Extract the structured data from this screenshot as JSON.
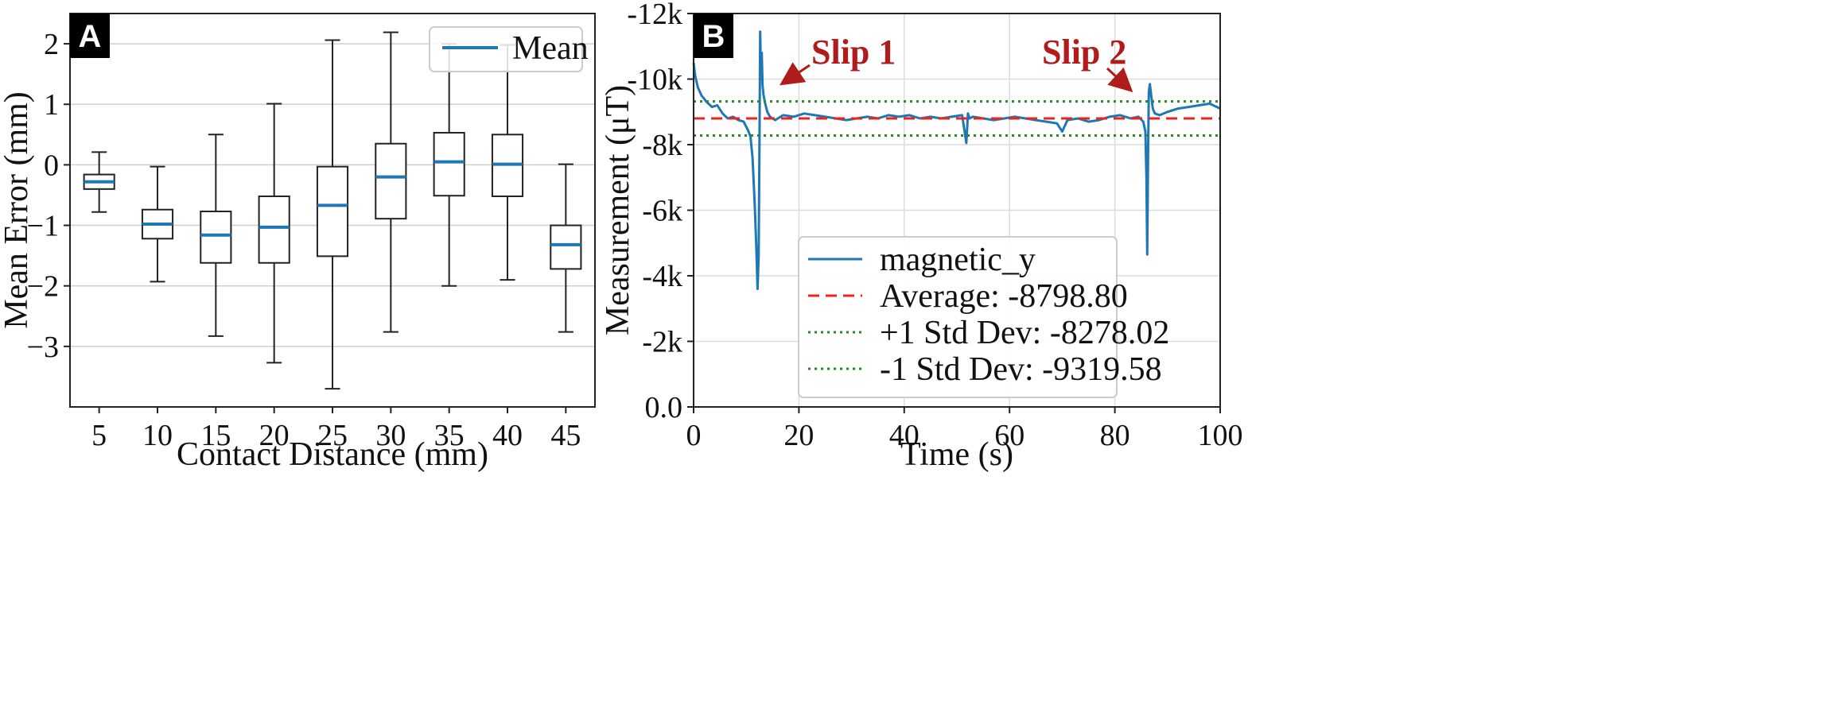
{
  "chart_data": [
    {
      "type": "box",
      "panel_label": "A",
      "xlabel": "Contact Distance (mm)",
      "ylabel": "Mean Error (mm)",
      "ylim": [
        -4.0,
        2.5
      ],
      "yticks": [
        2,
        1,
        0,
        -1,
        -2,
        -3
      ],
      "ytick_labels": [
        "2",
        "1",
        "0",
        "−1",
        "−2",
        "−3"
      ],
      "grid": "horizontal",
      "legend": {
        "placement": "top-right",
        "entries": [
          "Mean"
        ]
      },
      "mean_color": "#1f77b4",
      "categories": [
        "5",
        "10",
        "15",
        "20",
        "25",
        "30",
        "35",
        "40",
        "45"
      ],
      "boxes": [
        {
          "whisker_low": -0.78,
          "q1": -0.4,
          "mean": -0.28,
          "q3": -0.16,
          "whisker_high": 0.21
        },
        {
          "whisker_low": -1.93,
          "q1": -1.22,
          "mean": -0.98,
          "q3": -0.74,
          "whisker_high": -0.03
        },
        {
          "whisker_low": -2.83,
          "q1": -1.62,
          "mean": -1.16,
          "q3": -0.77,
          "whisker_high": 0.5
        },
        {
          "whisker_low": -3.27,
          "q1": -1.62,
          "mean": -1.03,
          "q3": -0.52,
          "whisker_high": 1.01
        },
        {
          "whisker_low": -3.7,
          "q1": -1.51,
          "mean": -0.67,
          "q3": -0.03,
          "whisker_high": 2.06
        },
        {
          "whisker_low": -2.76,
          "q1": -0.89,
          "mean": -0.2,
          "q3": 0.35,
          "whisker_high": 2.19
        },
        {
          "whisker_low": -2.0,
          "q1": -0.51,
          "mean": 0.05,
          "q3": 0.53,
          "whisker_high": 2.0
        },
        {
          "whisker_low": -1.9,
          "q1": -0.52,
          "mean": 0.01,
          "q3": 0.5,
          "whisker_high": 1.98
        },
        {
          "whisker_low": -2.76,
          "q1": -1.72,
          "mean": -1.32,
          "q3": -1.0,
          "whisker_high": 0.01
        }
      ]
    },
    {
      "type": "line",
      "panel_label": "B",
      "xlabel": "Time (s)",
      "ylabel": "Measurement (μT)",
      "xlim": [
        0,
        100
      ],
      "ylim": [
        0,
        -12000
      ],
      "xticks": [
        0,
        20,
        40,
        60,
        80,
        100
      ],
      "xtick_labels": [
        "0",
        "20",
        "40",
        "60",
        "80",
        "100"
      ],
      "yticks": [
        0,
        -2000,
        -4000,
        -6000,
        -8000,
        -10000,
        -12000
      ],
      "ytick_labels": [
        "0.0",
        "-2k",
        "-4k",
        "-6k",
        "-8k",
        "-10k",
        "-12k"
      ],
      "grid": true,
      "legend": {
        "placement": "center-bottom"
      },
      "series": [
        {
          "name": "magnetic_y",
          "style": "solid",
          "color": "#1f77b4",
          "x": [
            0,
            0.3,
            0.8,
            1.5,
            2.5,
            3.5,
            4.5,
            5.5,
            6.5,
            7.5,
            8.5,
            9.5,
            10.3,
            10.8,
            11.2,
            11.6,
            11.9,
            12.15,
            12.35,
            12.5,
            12.65,
            12.8,
            12.95,
            13.1,
            13.3,
            13.6,
            14.0,
            14.5,
            15.5,
            17,
            19,
            21,
            23,
            25,
            27,
            29,
            31,
            33,
            35,
            37,
            39,
            41,
            43,
            45,
            47,
            49,
            51,
            51.8,
            52.1,
            52.4,
            53,
            55,
            57,
            59,
            61,
            63,
            65,
            67,
            69,
            70,
            71,
            73,
            75,
            77,
            79,
            81,
            83,
            84.5,
            85.4,
            85.8,
            86.0,
            86.15,
            86.3,
            86.45,
            86.65,
            86.9,
            87.2,
            87.6,
            88.5,
            90,
            92,
            94,
            96,
            98,
            100
          ],
          "y": [
            -10500,
            -10100,
            -9750,
            -9500,
            -9300,
            -9150,
            -9200,
            -8950,
            -8800,
            -8850,
            -8750,
            -8700,
            -8450,
            -8250,
            -7600,
            -6200,
            -4900,
            -3600,
            -4600,
            -8000,
            -11450,
            -10000,
            -10800,
            -9800,
            -9500,
            -9250,
            -9000,
            -8850,
            -8750,
            -8900,
            -8850,
            -8950,
            -8900,
            -8850,
            -8800,
            -8750,
            -8800,
            -8850,
            -8800,
            -8900,
            -8850,
            -8900,
            -8800,
            -8850,
            -8800,
            -8850,
            -8900,
            -8050,
            -8950,
            -8800,
            -8850,
            -8800,
            -8750,
            -8800,
            -8850,
            -8800,
            -8750,
            -8700,
            -8650,
            -8400,
            -8750,
            -8800,
            -8700,
            -8750,
            -8850,
            -8900,
            -8800,
            -8850,
            -8700,
            -8400,
            -7000,
            -4650,
            -7500,
            -9600,
            -9850,
            -9500,
            -9100,
            -8950,
            -8900,
            -9000,
            -9100,
            -9150,
            -9200,
            -9250,
            -9100
          ]
        },
        {
          "name": "Average: -8798.80",
          "style": "dashed",
          "color": "#e8251f",
          "value": -8798.8
        },
        {
          "name": "+1 Std Dev: -8278.02",
          "style": "dotted",
          "color": "#2a8a2a",
          "value": -8278.02
        },
        {
          "name": "-1 Std Dev: -9319.58",
          "style": "dotted",
          "color": "#2a8a2a",
          "value": -9319.58
        }
      ],
      "annotations": [
        {
          "text": "Slip 1",
          "x": 13.4,
          "y": -10200,
          "color": "#b01c1c"
        },
        {
          "text": "Slip 2",
          "x": 82.5,
          "y": -10200,
          "color": "#b01c1c"
        }
      ]
    }
  ]
}
